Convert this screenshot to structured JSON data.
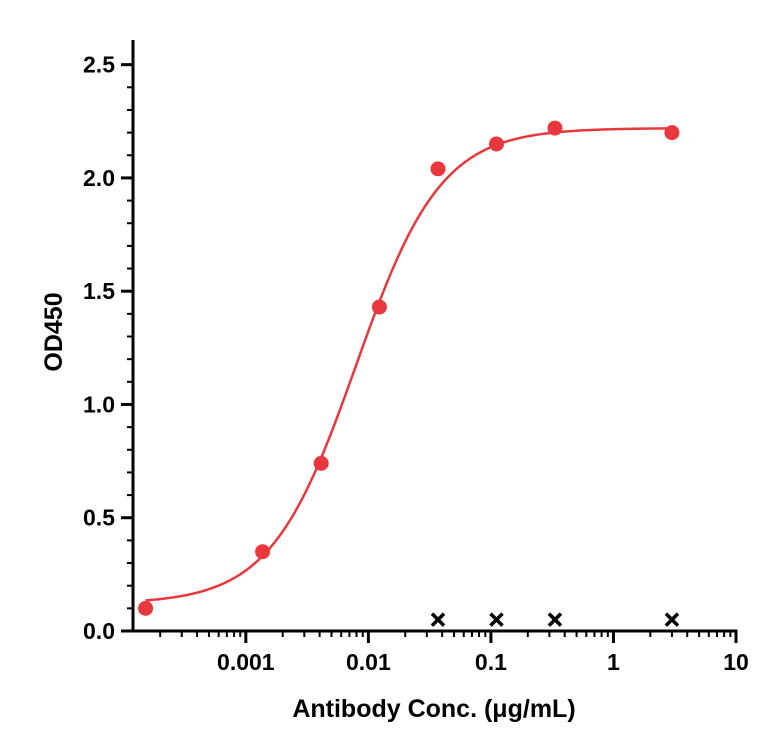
{
  "chart_data": {
    "type": "scatter",
    "xlabel": "Antibody Conc. (μg/mL)",
    "ylabel": "OD450",
    "xscale": "log",
    "xlim": [
      0.00012,
      10
    ],
    "ylim": [
      0,
      2.6
    ],
    "x_ticks": [
      {
        "value": 0.001,
        "label": "0.001"
      },
      {
        "value": 0.01,
        "label": "0.01"
      },
      {
        "value": 0.1,
        "label": "0.1"
      },
      {
        "value": 1,
        "label": "1"
      },
      {
        "value": 10,
        "label": "10"
      }
    ],
    "y_ticks": [
      {
        "value": 0,
        "label": "0.0"
      },
      {
        "value": 0.5,
        "label": "0.5"
      },
      {
        "value": 1.0,
        "label": "1.0"
      },
      {
        "value": 1.5,
        "label": "1.5"
      },
      {
        "value": 2.0,
        "label": "2.0"
      },
      {
        "value": 2.5,
        "label": "2.5"
      }
    ],
    "grid": false,
    "series": [
      {
        "marker": "circle",
        "color": "#e8383d",
        "fit": "four-parameter logistic",
        "x": [
          0.000152,
          0.00137,
          0.00412,
          0.0123,
          0.037,
          0.111,
          0.333,
          3.0
        ],
        "y": [
          0.1,
          0.35,
          0.74,
          1.43,
          2.04,
          2.15,
          2.22,
          2.2
        ]
      },
      {
        "marker": "cross",
        "color": "#000000",
        "x": [
          0.037,
          0.111,
          0.333,
          3.0
        ],
        "y": [
          0.05,
          0.05,
          0.05,
          0.05
        ]
      }
    ]
  }
}
